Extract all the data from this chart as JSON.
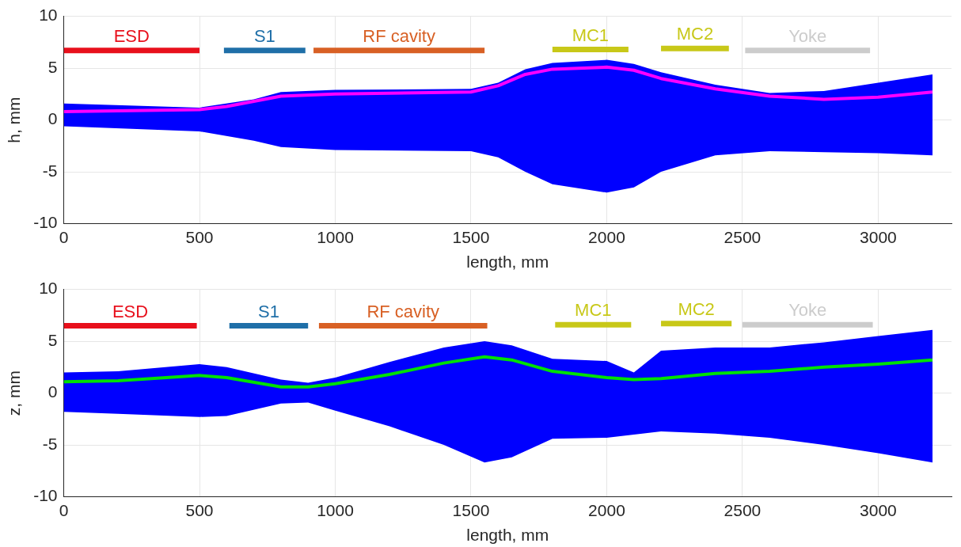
{
  "chart_data": [
    {
      "type": "line",
      "xlabel": "length, mm",
      "ylabel": "h, mm",
      "xlim": [
        0,
        3270
      ],
      "ylim": [
        -10,
        10
      ],
      "xticks": [
        0,
        500,
        1000,
        1500,
        2000,
        2500,
        3000
      ],
      "yticks": [
        -10,
        -5,
        0,
        5,
        10
      ],
      "grid": true,
      "legend": false,
      "marker": "none",
      "line_style": "solid",
      "series": [
        {
          "color": "#0000ff",
          "x": [
            0,
            500,
            700,
            800,
            1000,
            1500,
            1600,
            1700,
            1800,
            2000,
            2100,
            2200,
            2400,
            2600,
            2800,
            3000,
            3200
          ],
          "values": [
            null,
            null,
            null,
            null,
            null,
            null,
            null,
            null,
            null,
            null,
            null,
            null,
            null,
            null,
            null,
            null,
            null
          ],
          "upper": [
            1.6,
            1.2,
            2.0,
            2.7,
            2.9,
            3.0,
            3.6,
            4.9,
            5.5,
            5.8,
            5.4,
            4.6,
            3.4,
            2.6,
            2.8,
            3.6,
            4.4
          ],
          "lower": [
            -0.6,
            -1.1,
            -2.0,
            -2.6,
            -2.9,
            -3.0,
            -3.6,
            -5.0,
            -6.2,
            -7.0,
            -6.5,
            -5.0,
            -3.4,
            -3.0,
            -3.1,
            -3.2,
            -3.4
          ]
        },
        {
          "color": "#ff00ff",
          "x": [
            0,
            500,
            600,
            800,
            1000,
            1500,
            1600,
            1700,
            1800,
            2000,
            2100,
            2200,
            2400,
            2600,
            2800,
            3000,
            3200
          ],
          "values": [
            0.8,
            1.0,
            1.3,
            2.3,
            2.5,
            2.7,
            3.3,
            4.4,
            4.9,
            5.1,
            4.8,
            4.0,
            3.0,
            2.3,
            2.0,
            2.2,
            2.7
          ]
        },
        {
          "name": "ESD",
          "color": "#e8101c",
          "x": [
            0,
            500
          ],
          "values": [
            6.7,
            6.7
          ]
        },
        {
          "name": "S1",
          "color": "#1f6fa8",
          "x": [
            590,
            890
          ],
          "values": [
            6.7,
            6.7
          ]
        },
        {
          "name": "RF cavity",
          "color": "#d86024",
          "x": [
            920,
            1550
          ],
          "values": [
            6.7,
            6.7
          ]
        },
        {
          "name": "MC1",
          "color": "#c8c818",
          "x": [
            1800,
            2080
          ],
          "values": [
            6.8,
            6.8
          ]
        },
        {
          "name": "MC2",
          "color": "#c8c818",
          "x": [
            2200,
            2450
          ],
          "values": [
            6.9,
            6.9
          ]
        },
        {
          "name": "Yoke",
          "color": "#cccccc",
          "x": [
            2510,
            2970
          ],
          "values": [
            6.7,
            6.7
          ]
        }
      ]
    },
    {
      "type": "line",
      "xlabel": "length, mm",
      "ylabel": "z, mm",
      "xlim": [
        0,
        3270
      ],
      "ylim": [
        -10,
        10
      ],
      "xticks": [
        0,
        500,
        1000,
        1500,
        2000,
        2500,
        3000
      ],
      "yticks": [
        -10,
        -5,
        0,
        5,
        10
      ],
      "grid": true,
      "legend": false,
      "marker": "none",
      "line_style": "solid",
      "series": [
        {
          "color": "#0000ff",
          "x": [
            0,
            200,
            500,
            600,
            800,
            900,
            1000,
            1200,
            1400,
            1550,
            1650,
            1800,
            2000,
            2100,
            2200,
            2400,
            2600,
            2800,
            3000,
            3200
          ],
          "values": [
            null,
            null,
            null,
            null,
            null,
            null,
            null,
            null,
            null,
            null,
            null,
            null,
            null,
            null,
            null,
            null,
            null,
            null,
            null,
            null
          ],
          "upper": [
            2.0,
            2.1,
            2.8,
            2.5,
            1.3,
            1.0,
            1.5,
            3.0,
            4.4,
            5.0,
            4.6,
            3.3,
            3.1,
            2.0,
            4.1,
            4.4,
            4.4,
            4.9,
            5.5,
            6.1
          ],
          "lower": [
            -1.8,
            -2.0,
            -2.3,
            -2.2,
            -1.0,
            -0.9,
            -1.7,
            -3.2,
            -5.0,
            -6.7,
            -6.2,
            -4.4,
            -4.3,
            -4.0,
            -3.7,
            -3.9,
            -4.3,
            -5.0,
            -5.8,
            -6.7
          ]
        },
        {
          "color": "#00e000",
          "x": [
            0,
            200,
            500,
            600,
            800,
            900,
            1000,
            1200,
            1400,
            1550,
            1650,
            1800,
            2000,
            2100,
            2200,
            2400,
            2600,
            2800,
            3000,
            3200
          ],
          "values": [
            1.1,
            1.2,
            1.7,
            1.5,
            0.6,
            0.6,
            0.9,
            1.8,
            2.9,
            3.5,
            3.2,
            2.1,
            1.5,
            1.3,
            1.4,
            1.9,
            2.1,
            2.5,
            2.8,
            3.2
          ]
        },
        {
          "name": "ESD",
          "color": "#e8101c",
          "x": [
            0,
            490
          ],
          "values": [
            6.5,
            6.5
          ]
        },
        {
          "name": "S1",
          "color": "#1f6fa8",
          "x": [
            610,
            900
          ],
          "values": [
            6.5,
            6.5
          ]
        },
        {
          "name": "RF cavity",
          "color": "#d86024",
          "x": [
            940,
            1560
          ],
          "values": [
            6.5,
            6.5
          ]
        },
        {
          "name": "MC1",
          "color": "#c8c818",
          "x": [
            1810,
            2090
          ],
          "values": [
            6.6,
            6.6
          ]
        },
        {
          "name": "MC2",
          "color": "#c8c818",
          "x": [
            2200,
            2460
          ],
          "values": [
            6.7,
            6.7
          ]
        },
        {
          "name": "Yoke",
          "color": "#cccccc",
          "x": [
            2500,
            2980
          ],
          "values": [
            6.6,
            6.6
          ]
        }
      ]
    }
  ]
}
